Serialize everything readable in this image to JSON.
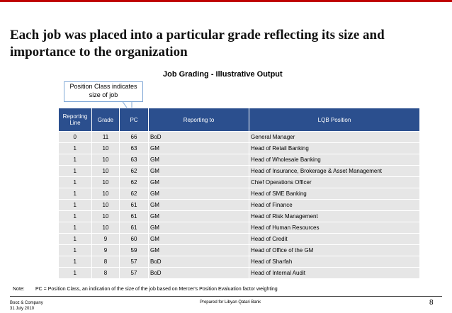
{
  "header": {
    "title": "Each job was placed into a particular grade reflecting its size and importance to the organization"
  },
  "subtitle": "Job Grading - Illustrative Output",
  "callout": "Position Class indicates size of job",
  "table": {
    "columns": [
      "Reporting Line",
      "Grade",
      "PC",
      "Reporting to",
      "LQB Position"
    ],
    "rows": [
      [
        0,
        11,
        66,
        "BoD",
        "General Manager"
      ],
      [
        1,
        10,
        63,
        "GM",
        "Head of Retail Banking"
      ],
      [
        1,
        10,
        63,
        "GM",
        "Head of Wholesale Banking"
      ],
      [
        1,
        10,
        62,
        "GM",
        "Head of Insurance, Brokerage & Asset Management"
      ],
      [
        1,
        10,
        62,
        "GM",
        "Chief Operations Officer"
      ],
      [
        1,
        10,
        62,
        "GM",
        "Head of SME Banking"
      ],
      [
        1,
        10,
        61,
        "GM",
        "Head of Finance"
      ],
      [
        1,
        10,
        61,
        "GM",
        "Head of Risk Management"
      ],
      [
        1,
        10,
        61,
        "GM",
        "Head of Human Resources"
      ],
      [
        1,
        9,
        60,
        "GM",
        "Head of Credit"
      ],
      [
        1,
        9,
        59,
        "GM",
        "Head of Office of the GM"
      ],
      [
        1,
        8,
        57,
        "BoD",
        "Head of Sharfah"
      ],
      [
        1,
        8,
        57,
        "BoD",
        "Head of Internal Audit"
      ]
    ]
  },
  "note": {
    "label": "Note:",
    "text": "PC = Position Class, an indication of the size of the job based on Mercer's Position Evaluation factor weighting"
  },
  "footer": {
    "company": "Booz & Company",
    "date": "31 July 2010",
    "center": "Prepared for Libyan Qatari Bank",
    "page": 8
  }
}
